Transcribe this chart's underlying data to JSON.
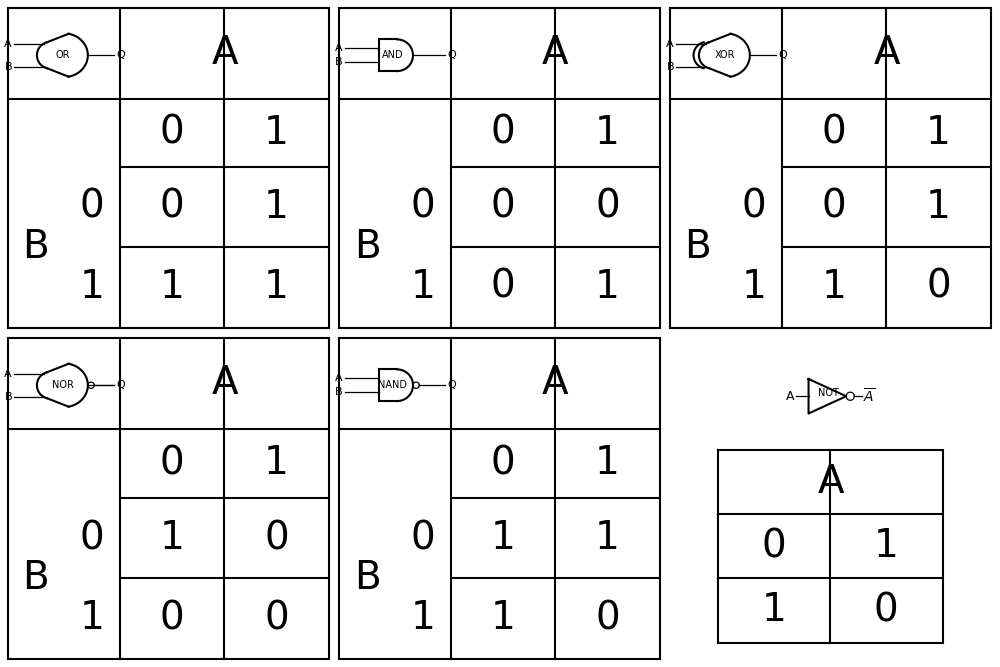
{
  "gates": [
    {
      "name": "OR",
      "col": 0,
      "row": 0,
      "type": "or",
      "table": [
        [
          0,
          1
        ],
        [
          1,
          1
        ]
      ]
    },
    {
      "name": "AND",
      "col": 1,
      "row": 0,
      "type": "and",
      "table": [
        [
          0,
          0
        ],
        [
          0,
          1
        ]
      ]
    },
    {
      "name": "XOR",
      "col": 2,
      "row": 0,
      "type": "xor",
      "table": [
        [
          0,
          1
        ],
        [
          1,
          0
        ]
      ]
    },
    {
      "name": "NOR",
      "col": 0,
      "row": 1,
      "type": "nor",
      "table": [
        [
          1,
          0
        ],
        [
          0,
          0
        ]
      ]
    },
    {
      "name": "NAND",
      "col": 1,
      "row": 1,
      "type": "nand",
      "table": [
        [
          1,
          1
        ],
        [
          1,
          0
        ]
      ]
    },
    {
      "name": "NOT",
      "col": 2,
      "row": 1,
      "type": "not",
      "table": [
        [
          0,
          1
        ],
        [
          1,
          0
        ]
      ]
    }
  ],
  "font_large": 28,
  "font_med": 20,
  "font_small": 8,
  "lw": 1.5
}
